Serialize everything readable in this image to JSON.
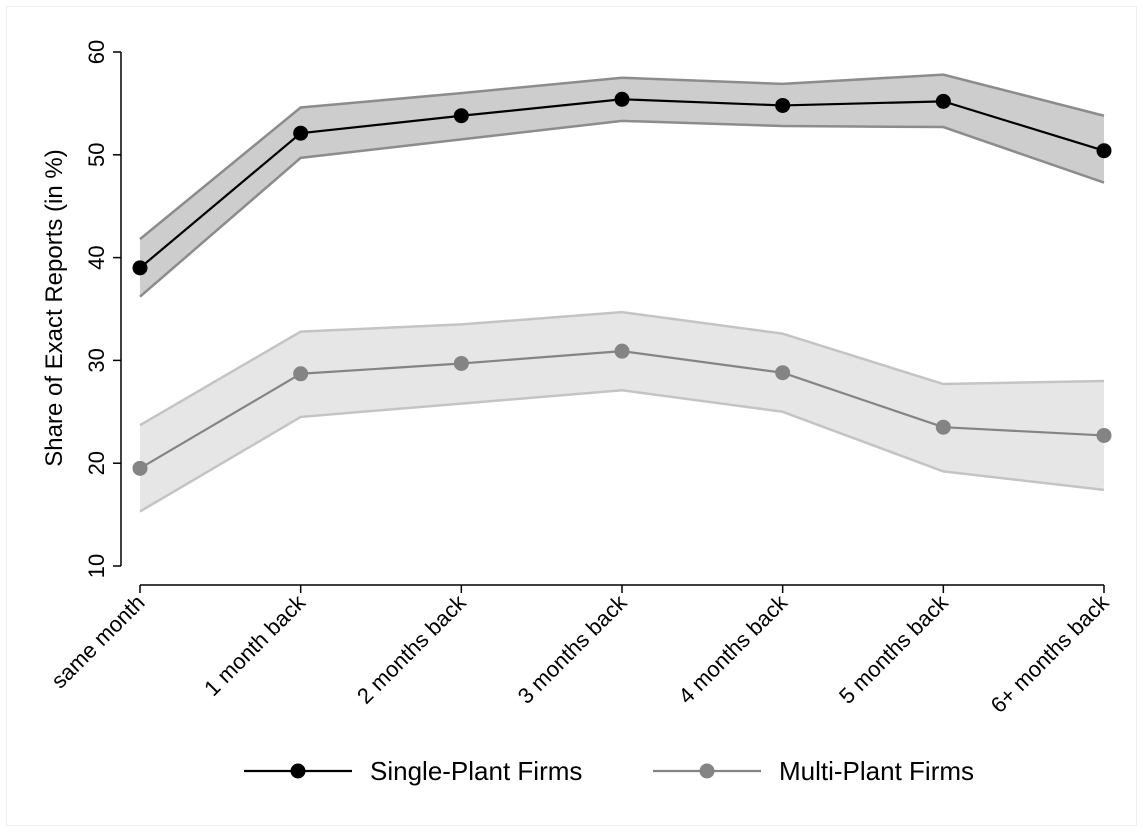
{
  "chart_data": {
    "type": "line",
    "title": "",
    "xlabel": "",
    "ylabel": "Share of Exact Reports (in %)",
    "categories": [
      "same month",
      "1 month back",
      "2 months back",
      "3 months back",
      "4 months back",
      "5 months back",
      "6+ months back"
    ],
    "ylim": [
      10,
      60
    ],
    "yticks": [
      10,
      20,
      30,
      40,
      50,
      60
    ],
    "grid": false,
    "legend_position": "bottom",
    "series": [
      {
        "name": "Single-Plant Firms",
        "values": [
          39.0,
          52.1,
          53.8,
          55.4,
          54.8,
          55.2,
          50.4
        ],
        "ci_lower": [
          36.2,
          49.7,
          51.5,
          53.3,
          52.8,
          52.7,
          47.3
        ],
        "ci_upper": [
          41.8,
          54.6,
          56.0,
          57.5,
          56.9,
          57.8,
          53.8
        ],
        "line_color": "#000000",
        "marker_color": "#000000",
        "band_fill": "#cdcdcd",
        "band_edge": "#8c8c8c"
      },
      {
        "name": "Multi-Plant Firms",
        "values": [
          19.5,
          28.7,
          29.7,
          30.9,
          28.8,
          23.5,
          22.7
        ],
        "ci_lower": [
          15.3,
          24.5,
          25.8,
          27.1,
          25.0,
          19.2,
          17.4
        ],
        "ci_upper": [
          23.7,
          32.8,
          33.5,
          34.7,
          32.6,
          27.7,
          28.0
        ],
        "line_color": "#848484",
        "marker_color": "#848484",
        "band_fill": "#e6e6e6",
        "band_edge": "#c4c4c4"
      }
    ]
  }
}
